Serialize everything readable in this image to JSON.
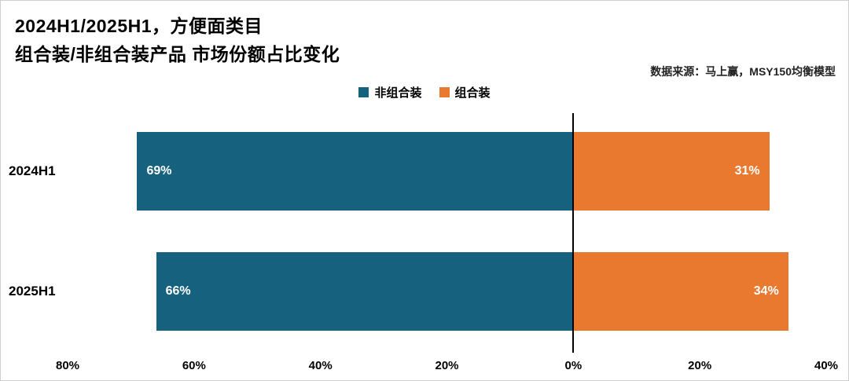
{
  "title": {
    "line1": "2024H1/2025H1，方便面类目",
    "line2": "组合装/非组合装产品 市场份额占比变化"
  },
  "source": "数据来源：马上赢，MSY150均衡模型",
  "chart_data": {
    "type": "bar",
    "orientation": "horizontal-diverging",
    "title": "2024H1/2025H1，方便面类目 组合装/非组合装产品 市场份额占比变化",
    "categories": [
      "2024H1",
      "2025H1"
    ],
    "series": [
      {
        "name": "非组合装",
        "color": "#16617E",
        "values": [
          69,
          66
        ],
        "labels": [
          "69%",
          "66%"
        ]
      },
      {
        "name": "组合装",
        "color": "#E8792F",
        "values": [
          31,
          34
        ],
        "labels": [
          "31%",
          "34%"
        ]
      }
    ],
    "x_min": -80,
    "x_max": 40,
    "ticks": [
      -80,
      -60,
      -40,
      -20,
      0,
      20,
      40
    ],
    "tick_labels": [
      "80%",
      "60%",
      "40%",
      "20%",
      "0%",
      "20%",
      "40%"
    ],
    "zero_line": true,
    "legend_position": "top",
    "grid": false,
    "value_label_color": "#ffffff"
  }
}
